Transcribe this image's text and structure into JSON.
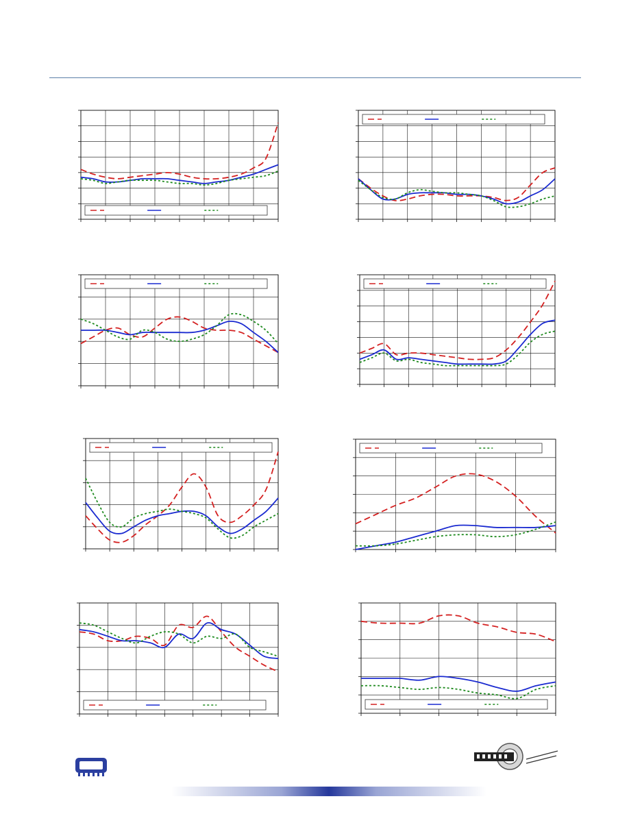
{
  "chart_data": [
    {
      "type": "line",
      "legend_position": "bottom",
      "grid": true,
      "xlim": [
        0,
        8
      ],
      "ylim": [
        0,
        7
      ],
      "x": [
        0,
        0.5,
        1,
        1.5,
        2,
        2.5,
        3,
        3.5,
        4,
        4.5,
        5,
        5.5,
        6,
        6.5,
        7,
        7.5,
        8
      ],
      "series": [
        {
          "color": "#d42020",
          "style": "dashed",
          "values": [
            3.2,
            2.9,
            2.7,
            2.6,
            2.7,
            2.8,
            2.9,
            3.0,
            2.9,
            2.7,
            2.6,
            2.6,
            2.7,
            2.9,
            3.3,
            3.9,
            6.2
          ]
        },
        {
          "color": "#1a2ad0",
          "style": "solid",
          "values": [
            2.7,
            2.6,
            2.4,
            2.4,
            2.5,
            2.6,
            2.6,
            2.6,
            2.5,
            2.4,
            2.3,
            2.4,
            2.5,
            2.7,
            2.9,
            3.2,
            3.5
          ]
        },
        {
          "color": "#1e8a1e",
          "style": "dotted",
          "values": [
            2.6,
            2.5,
            2.3,
            2.4,
            2.5,
            2.5,
            2.5,
            2.4,
            2.3,
            2.3,
            2.2,
            2.3,
            2.5,
            2.6,
            2.7,
            2.8,
            3.1
          ]
        }
      ]
    },
    {
      "type": "line",
      "legend_position": "top",
      "grid": true,
      "xlim": [
        0,
        8
      ],
      "ylim": [
        0,
        7
      ],
      "x": [
        0,
        0.5,
        1,
        1.5,
        2,
        2.5,
        3,
        3.5,
        4,
        4.5,
        5,
        5.5,
        6,
        6.5,
        7,
        7.5,
        8
      ],
      "series": [
        {
          "color": "#d42020",
          "style": "dashed",
          "values": [
            2.6,
            2.0,
            1.5,
            1.2,
            1.3,
            1.5,
            1.6,
            1.6,
            1.5,
            1.5,
            1.5,
            1.4,
            1.2,
            1.4,
            2.2,
            3.0,
            3.3
          ]
        },
        {
          "color": "#1a2ad0",
          "style": "solid",
          "values": [
            2.6,
            1.9,
            1.3,
            1.3,
            1.6,
            1.7,
            1.7,
            1.7,
            1.6,
            1.6,
            1.5,
            1.3,
            1.0,
            1.1,
            1.5,
            1.9,
            2.6
          ]
        },
        {
          "color": "#1e8a1e",
          "style": "dotted",
          "values": [
            2.5,
            1.9,
            1.4,
            1.3,
            1.7,
            1.9,
            1.8,
            1.7,
            1.7,
            1.6,
            1.5,
            1.2,
            0.8,
            0.8,
            1.0,
            1.3,
            1.5
          ]
        }
      ]
    },
    {
      "type": "line",
      "legend_position": "top",
      "grid": true,
      "xlim": [
        0,
        8
      ],
      "ylim": [
        0,
        5
      ],
      "x": [
        0,
        0.5,
        1,
        1.5,
        2,
        2.5,
        3,
        3.5,
        4,
        4.5,
        5,
        5.5,
        6,
        6.5,
        7,
        7.5,
        8
      ],
      "series": [
        {
          "color": "#d42020",
          "style": "dashed",
          "values": [
            1.9,
            2.2,
            2.5,
            2.6,
            2.3,
            2.2,
            2.6,
            3.0,
            3.1,
            2.9,
            2.6,
            2.5,
            2.5,
            2.4,
            2.1,
            1.8,
            1.5
          ]
        },
        {
          "color": "#1a2ad0",
          "style": "solid",
          "values": [
            2.5,
            2.5,
            2.5,
            2.4,
            2.3,
            2.4,
            2.4,
            2.4,
            2.4,
            2.4,
            2.5,
            2.7,
            2.9,
            2.8,
            2.4,
            2.0,
            1.5
          ]
        },
        {
          "color": "#1e8a1e",
          "style": "dotted",
          "values": [
            3.0,
            2.8,
            2.5,
            2.2,
            2.1,
            2.5,
            2.4,
            2.1,
            2.0,
            2.1,
            2.3,
            2.7,
            3.2,
            3.2,
            2.9,
            2.5,
            1.9
          ]
        }
      ]
    },
    {
      "type": "line",
      "legend_position": "top",
      "grid": true,
      "xlim": [
        0,
        8
      ],
      "ylim": [
        0,
        7
      ],
      "x": [
        0,
        0.5,
        1,
        1.5,
        2,
        2.5,
        3,
        3.5,
        4,
        4.5,
        5,
        5.5,
        6,
        6.5,
        7,
        7.5,
        8
      ],
      "series": [
        {
          "color": "#d42020",
          "style": "dashed",
          "values": [
            2.0,
            2.3,
            2.6,
            1.9,
            2.0,
            2.0,
            1.9,
            1.8,
            1.7,
            1.6,
            1.6,
            1.7,
            2.2,
            3.0,
            4.0,
            5.1,
            6.6
          ]
        },
        {
          "color": "#1a2ad0",
          "style": "solid",
          "values": [
            1.6,
            1.9,
            2.2,
            1.6,
            1.7,
            1.6,
            1.5,
            1.4,
            1.3,
            1.3,
            1.3,
            1.3,
            1.5,
            2.3,
            3.2,
            3.9,
            4.1
          ]
        },
        {
          "color": "#1e8a1e",
          "style": "dotted",
          "values": [
            1.4,
            1.7,
            2.0,
            1.5,
            1.6,
            1.4,
            1.3,
            1.2,
            1.2,
            1.2,
            1.2,
            1.2,
            1.3,
            1.9,
            2.7,
            3.2,
            3.4
          ]
        }
      ]
    },
    {
      "type": "line",
      "legend_position": "top",
      "grid": true,
      "xlim": [
        0,
        8
      ],
      "ylim": [
        0,
        5
      ],
      "x": [
        0,
        0.5,
        1,
        1.5,
        2,
        2.5,
        3,
        3.5,
        4,
        4.5,
        5,
        5.5,
        6,
        6.5,
        7,
        7.5,
        8
      ],
      "series": [
        {
          "color": "#d42020",
          "style": "dashed",
          "values": [
            1.5,
            0.9,
            0.4,
            0.3,
            0.6,
            1.1,
            1.5,
            2.0,
            2.8,
            3.4,
            2.8,
            1.5,
            1.2,
            1.5,
            2.0,
            2.7,
            4.4
          ]
        },
        {
          "color": "#1a2ad0",
          "style": "solid",
          "values": [
            2.1,
            1.4,
            0.8,
            0.7,
            1.0,
            1.3,
            1.5,
            1.6,
            1.7,
            1.7,
            1.5,
            1.0,
            0.7,
            0.9,
            1.3,
            1.7,
            2.3
          ]
        },
        {
          "color": "#1e8a1e",
          "style": "dotted",
          "values": [
            3.2,
            2.1,
            1.2,
            1.0,
            1.4,
            1.6,
            1.7,
            1.8,
            1.7,
            1.6,
            1.4,
            0.9,
            0.5,
            0.6,
            1.0,
            1.3,
            1.6
          ]
        }
      ]
    },
    {
      "type": "line",
      "legend_position": "top",
      "grid": true,
      "xlim": [
        0,
        5
      ],
      "ylim": [
        0,
        6
      ],
      "x": [
        0,
        0.5,
        1,
        1.5,
        2,
        2.5,
        3,
        3.5,
        4,
        4.5,
        5
      ],
      "series": [
        {
          "color": "#d42020",
          "style": "dashed",
          "values": [
            1.4,
            1.9,
            2.4,
            2.8,
            3.4,
            4.0,
            4.1,
            3.7,
            2.9,
            1.8,
            0.9
          ]
        },
        {
          "color": "#1a2ad0",
          "style": "solid",
          "values": [
            0.0,
            0.2,
            0.4,
            0.7,
            1.0,
            1.3,
            1.3,
            1.2,
            1.2,
            1.2,
            1.3
          ]
        },
        {
          "color": "#1e8a1e",
          "style": "dotted",
          "values": [
            0.2,
            0.2,
            0.3,
            0.5,
            0.7,
            0.8,
            0.8,
            0.7,
            0.8,
            1.1,
            1.5
          ]
        }
      ]
    },
    {
      "type": "line",
      "legend_position": "bottom",
      "grid": true,
      "xlim": [
        0,
        7
      ],
      "ylim": [
        0,
        5
      ],
      "x": [
        0,
        0.5,
        1,
        1.5,
        2,
        2.5,
        3,
        3.5,
        4,
        4.5,
        5,
        5.5,
        6,
        6.5,
        7
      ],
      "series": [
        {
          "color": "#d42020",
          "style": "dashed",
          "values": [
            3.7,
            3.6,
            3.3,
            3.3,
            3.5,
            3.4,
            3.1,
            4.0,
            3.9,
            4.4,
            3.7,
            3.0,
            2.6,
            2.2,
            1.9
          ]
        },
        {
          "color": "#1a2ad0",
          "style": "solid",
          "values": [
            3.8,
            3.7,
            3.5,
            3.3,
            3.3,
            3.2,
            3.0,
            3.6,
            3.4,
            4.1,
            3.8,
            3.6,
            3.1,
            2.6,
            2.5
          ]
        },
        {
          "color": "#1e8a1e",
          "style": "dotted",
          "values": [
            4.1,
            4.0,
            3.7,
            3.4,
            3.2,
            3.5,
            3.7,
            3.6,
            3.2,
            3.5,
            3.4,
            3.6,
            3.0,
            2.8,
            2.6
          ]
        }
      ]
    },
    {
      "type": "line",
      "legend_position": "bottom",
      "grid": true,
      "xlim": [
        0,
        5
      ],
      "ylim": [
        0,
        6
      ],
      "x": [
        0,
        0.5,
        1,
        1.5,
        2,
        2.5,
        3,
        3.5,
        4,
        4.5,
        5
      ],
      "series": [
        {
          "color": "#d42020",
          "style": "dashed",
          "values": [
            5.0,
            4.9,
            4.9,
            4.9,
            5.3,
            5.3,
            4.9,
            4.7,
            4.4,
            4.3,
            3.9
          ]
        },
        {
          "color": "#1a2ad0",
          "style": "solid",
          "values": [
            1.9,
            1.9,
            1.9,
            1.8,
            2.0,
            1.9,
            1.7,
            1.4,
            1.2,
            1.5,
            1.7
          ]
        },
        {
          "color": "#1e8a1e",
          "style": "dotted",
          "values": [
            1.5,
            1.5,
            1.4,
            1.3,
            1.4,
            1.3,
            1.1,
            1.0,
            0.8,
            1.3,
            1.5
          ]
        }
      ]
    }
  ]
}
